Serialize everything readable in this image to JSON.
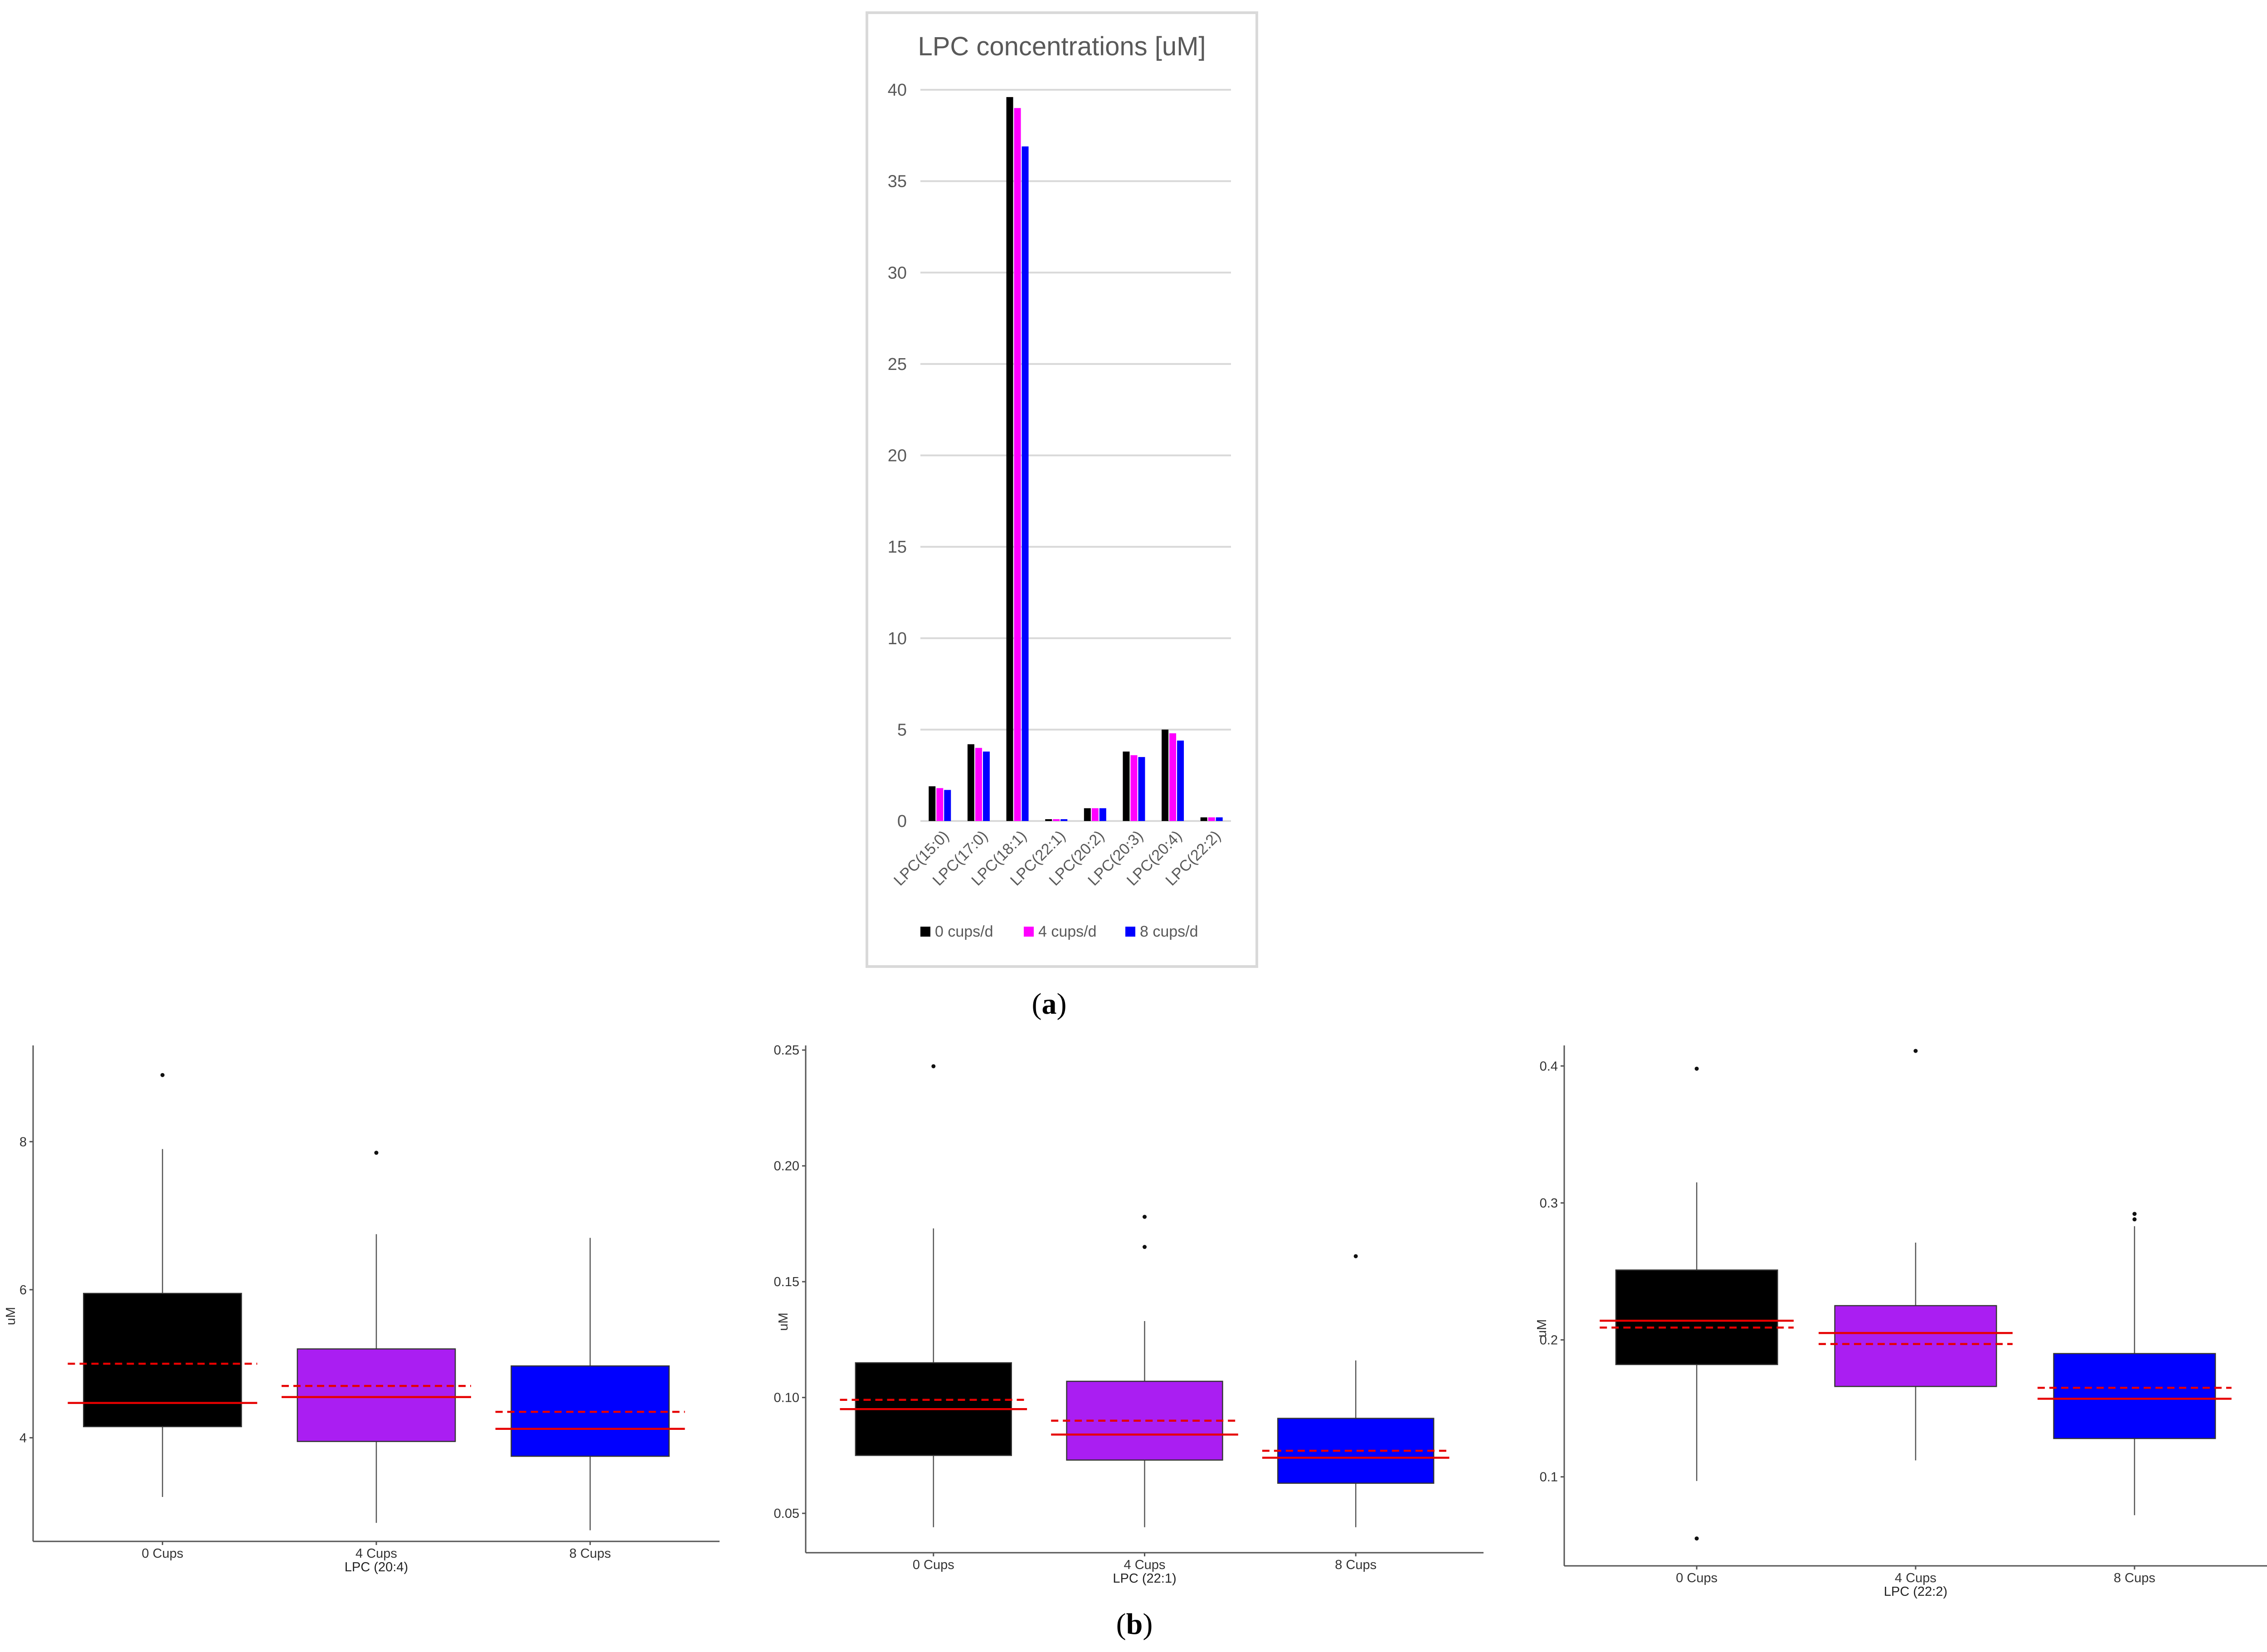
{
  "chart_data": [
    {
      "type": "bar",
      "title": "LPC concentrations [uM]",
      "categories": [
        "LPC(15:0)",
        "LPC(17:0)",
        "LPC(18:1)",
        "LPC(22:1)",
        "LPC(20:2)",
        "LPC(20:3)",
        "LPC(20:4)",
        "LPC(22:2)"
      ],
      "series": [
        {
          "name": "0 cups/d",
          "color": "#000000",
          "values": [
            1.9,
            4.2,
            39.6,
            0.1,
            0.7,
            3.8,
            5.0,
            0.2
          ]
        },
        {
          "name": "4 cups/d",
          "color": "#ff00ff",
          "values": [
            1.8,
            4.0,
            39.0,
            0.1,
            0.7,
            3.6,
            4.8,
            0.2
          ]
        },
        {
          "name": "8 cups/d",
          "color": "#0000ff",
          "values": [
            1.7,
            3.8,
            36.9,
            0.1,
            0.7,
            3.5,
            4.4,
            0.2
          ]
        }
      ],
      "ylim": [
        0,
        40
      ],
      "yticks": [
        0,
        5,
        10,
        15,
        20,
        25,
        30,
        35,
        40
      ],
      "grid": true,
      "legend": "bottom"
    },
    {
      "type": "box",
      "ylabel": "uM",
      "xlabel": "LPC (20:4)",
      "categories": [
        "0 Cups",
        "4 Cups",
        "8 Cups"
      ],
      "colors": [
        "#000000",
        "#aa1ef2",
        "#0000ff"
      ],
      "ylim": [
        2.6,
        9.3
      ],
      "yticks": [
        4,
        6,
        8
      ],
      "boxes": [
        {
          "q1": 4.15,
          "median": 4.47,
          "mean": 5.0,
          "q3": 5.95,
          "whisker_low": 3.2,
          "whisker_high": 7.9,
          "outliers": [
            8.9
          ]
        },
        {
          "q1": 3.95,
          "median": 4.55,
          "mean": 4.7,
          "q3": 5.2,
          "whisker_low": 2.85,
          "whisker_high": 6.75,
          "outliers": [
            7.85
          ]
        },
        {
          "q1": 3.75,
          "median": 4.12,
          "mean": 4.35,
          "q3": 4.97,
          "whisker_low": 2.75,
          "whisker_high": 6.7,
          "outliers": []
        }
      ]
    },
    {
      "type": "box",
      "ylabel": "uM",
      "xlabel": "LPC (22:1)",
      "categories": [
        "0 Cups",
        "4 Cups",
        "8 Cups"
      ],
      "colors": [
        "#000000",
        "#aa1ef2",
        "#0000ff"
      ],
      "ylim": [
        0.033,
        0.252
      ],
      "yticks": [
        "0.05",
        "0.10",
        "0.15",
        "0.20",
        "0.25"
      ],
      "boxes": [
        {
          "q1": 0.075,
          "median": 0.095,
          "mean": 0.099,
          "q3": 0.115,
          "whisker_low": 0.044,
          "whisker_high": 0.173,
          "outliers": [
            0.243
          ]
        },
        {
          "q1": 0.073,
          "median": 0.084,
          "mean": 0.09,
          "q3": 0.107,
          "whisker_low": 0.044,
          "whisker_high": 0.133,
          "outliers": [
            0.165,
            0.178
          ]
        },
        {
          "q1": 0.063,
          "median": 0.074,
          "mean": 0.077,
          "q3": 0.091,
          "whisker_low": 0.044,
          "whisker_high": 0.116,
          "outliers": [
            0.161
          ]
        }
      ]
    },
    {
      "type": "box",
      "ylabel": "uM",
      "xlabel": "LPC (22:2)",
      "categories": [
        "0 Cups",
        "4 Cups",
        "8 Cups"
      ],
      "colors": [
        "#000000",
        "#aa1ef2",
        "#0000ff"
      ],
      "ylim": [
        0.035,
        0.415
      ],
      "yticks": [
        "0.1",
        "0.2",
        "0.3",
        "0.4"
      ],
      "boxes": [
        {
          "q1": 0.182,
          "median": 0.214,
          "mean": 0.209,
          "q3": 0.251,
          "whisker_low": 0.097,
          "whisker_high": 0.315,
          "outliers": [
            0.055,
            0.398
          ]
        },
        {
          "q1": 0.166,
          "median": 0.205,
          "mean": 0.197,
          "q3": 0.225,
          "whisker_low": 0.112,
          "whisker_high": 0.271,
          "outliers": [
            0.411
          ]
        },
        {
          "q1": 0.128,
          "median": 0.157,
          "mean": 0.165,
          "q3": 0.19,
          "whisker_low": 0.072,
          "whisker_high": 0.283,
          "outliers": [
            0.288,
            0.292
          ]
        }
      ]
    }
  ],
  "stat_line_color": "#e60000",
  "labels": {
    "a_open": "(",
    "a_letter": "a",
    "a_close": ")",
    "b_open": "(",
    "b_letter": "b",
    "b_close": ")"
  }
}
